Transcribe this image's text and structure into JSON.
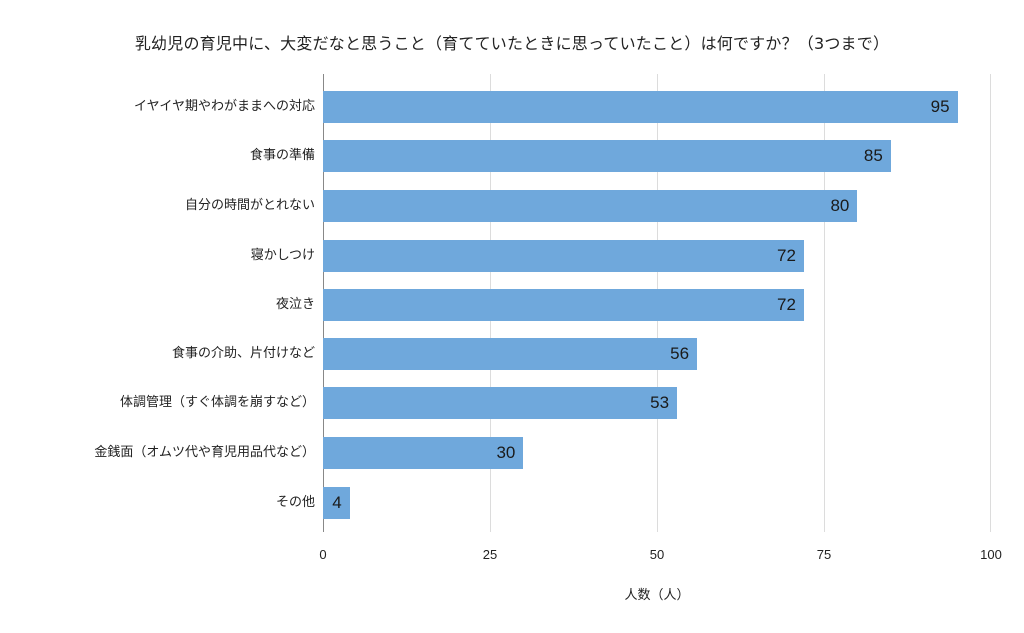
{
  "chart_data": {
    "type": "bar",
    "orientation": "horizontal",
    "title": "乳幼児の育児中に、大変だなと思うこと（育てていたときに思っていたこと）は何ですか？（3つまで）",
    "xlabel": "人数（人）",
    "ylabel": "",
    "categories": [
      "イヤイヤ期やわがままへの対応",
      "食事の準備",
      "自分の時間がとれない",
      "寝かしつけ",
      "夜泣き",
      "食事の介助、片付けなど",
      "体調管理（すぐ体調を崩すなど）",
      "金銭面（オムツ代や育児用品代など）",
      "その他"
    ],
    "values": [
      95,
      85,
      80,
      72,
      72,
      56,
      53,
      30,
      4
    ],
    "value_labels": [
      "95",
      "85",
      "80",
      "72",
      "72",
      "56",
      "53",
      "30",
      "4"
    ],
    "xlim": [
      0,
      100
    ],
    "xticks": [
      "0",
      "25",
      "50",
      "75",
      "100"
    ],
    "grid": true,
    "legend": false,
    "bar_color": "#6fa8dc"
  }
}
